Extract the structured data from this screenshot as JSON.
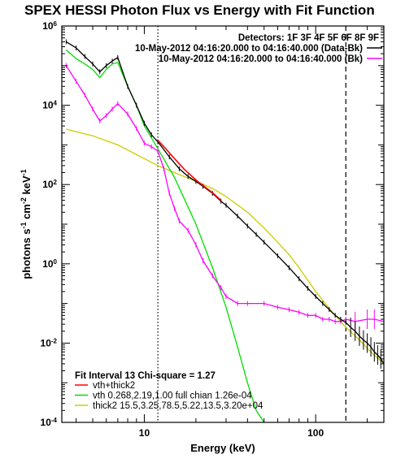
{
  "chart_data": {
    "type": "line",
    "title": "SPEX HESSI Photon Flux vs Energy with Fit Function",
    "xlabel": "Energy (keV)",
    "ylabel_main": "photons s",
    "ylabel_exp1": "-1",
    "ylabel_mid": " cm",
    "ylabel_exp2": "-2",
    "ylabel_end": " keV",
    "ylabel_exp3": "-1",
    "xscale": "log",
    "yscale": "log",
    "xlim": [
      3.3,
      250
    ],
    "ylim": [
      0.0001,
      1000000
    ],
    "x_ticks": [
      {
        "value": 10,
        "label": "10"
      },
      {
        "value": 100,
        "label": "100"
      }
    ],
    "y_ticks": [
      {
        "value": 0.0001,
        "base": "10",
        "exp": "-4"
      },
      {
        "value": 0.01,
        "base": "10",
        "exp": "-2"
      },
      {
        "value": 1,
        "base": "10",
        "exp": "0"
      },
      {
        "value": 100,
        "base": "10",
        "exp": "2"
      },
      {
        "value": 10000,
        "base": "10",
        "exp": "4"
      },
      {
        "value": 1000000,
        "base": "10",
        "exp": "6"
      }
    ],
    "vlines": [
      {
        "x": 12,
        "style": "dotted"
      },
      {
        "x": 150,
        "style": "dashed"
      }
    ],
    "legend_top": {
      "placement": "top-right",
      "header": "Detectors: 1F 3F 4F 5F 6F 8F 9F",
      "entries": [
        {
          "label": "10-May-2012 04:16:20.000 to 04:16:40.000 (Data-Bk)",
          "color": "#000000"
        },
        {
          "label": "10-May-2012 04:16:20.000 to 04:16:40.000 (Bk)",
          "color": "#ff00ff"
        }
      ]
    },
    "legend_bottom": {
      "placement": "bottom-left",
      "header": "Fit Interval 13   Chi-square = 1.27",
      "entries": [
        {
          "label": "vth+thick2",
          "color": "#ff0000"
        },
        {
          "label": "vth 0.268,2.19,1.00  full chian 1.26e-04",
          "color": "#00dd00"
        },
        {
          "label": "thick2 15.5,3.25,78.5,5.22,13.5,3.20e+04",
          "color": "#cccc00"
        }
      ]
    },
    "series": [
      {
        "name": "Data-Bk",
        "color": "#000000",
        "x": [
          3.5,
          4,
          4.5,
          5,
          5.5,
          6,
          6.5,
          7,
          8,
          9,
          10,
          11,
          12,
          14,
          16,
          18,
          20,
          22,
          25,
          28,
          30,
          35,
          40,
          45,
          50,
          60,
          70,
          80,
          90,
          100,
          110,
          120,
          130,
          140,
          150,
          160,
          170,
          180,
          190,
          200,
          210,
          220,
          230,
          240,
          250
        ],
        "y": [
          400000,
          280000,
          170000,
          110000,
          70000,
          100000,
          130000,
          160000,
          30000,
          10000,
          3500,
          1800,
          1200,
          500,
          250,
          160,
          120,
          90,
          60,
          38,
          30,
          16,
          9,
          5.5,
          3.5,
          1.6,
          0.8,
          0.42,
          0.24,
          0.15,
          0.1,
          0.07,
          0.05,
          0.04,
          0.033,
          0.025,
          0.02,
          0.015,
          0.012,
          0.01,
          0.008,
          0.006,
          0.005,
          0.004,
          0.003
        ]
      },
      {
        "name": "Bk",
        "color": "#ff00ff",
        "x": [
          3.5,
          4,
          4.5,
          5,
          5.5,
          6,
          6.5,
          7,
          8,
          9,
          10,
          11,
          12,
          13,
          14,
          15,
          16,
          18,
          20,
          22,
          25,
          28,
          30,
          35,
          40,
          50,
          60,
          70,
          80,
          90,
          100,
          110,
          120,
          130,
          140,
          150,
          170,
          200,
          220,
          250
        ],
        "y": [
          100000,
          40000,
          18000,
          8000,
          4000,
          5500,
          8000,
          11000,
          6000,
          2600,
          1100,
          900,
          700,
          250,
          60,
          25,
          12,
          7,
          3,
          1.2,
          0.5,
          0.25,
          0.15,
          0.1,
          0.1,
          0.1,
          0.08,
          0.07,
          0.06,
          0.05,
          0.05,
          0.04,
          0.04,
          0.035,
          0.035,
          0.04,
          0.035,
          0.04,
          0.04,
          0.035
        ]
      },
      {
        "name": "vth+thick2",
        "color": "#ff0000",
        "x": [
          12,
          13,
          15,
          17,
          20,
          22,
          25,
          28
        ],
        "y": [
          1300,
          900,
          450,
          250,
          130,
          95,
          62,
          40
        ]
      },
      {
        "name": "vth 0.268,2.19,1.00",
        "color": "#00dd00",
        "x": [
          3.5,
          4,
          4.5,
          5,
          5.5,
          6,
          6.5,
          7,
          8,
          9,
          10,
          12,
          15,
          20,
          25,
          30,
          35,
          40,
          45,
          50
        ],
        "y": [
          250000,
          150000,
          110000,
          80000,
          50000,
          80000,
          110000,
          120000,
          30000,
          10000,
          3000,
          800,
          150,
          10,
          0.8,
          0.08,
          0.008,
          0.001,
          0.0002,
          0.0001
        ]
      },
      {
        "name": "thick2 15.5,3.25,78.5,5.22,13.5,3.20e+04",
        "color": "#cccc00",
        "x": [
          3.5,
          5,
          7,
          10,
          12,
          15,
          20,
          25,
          30,
          40,
          50,
          60,
          70,
          80,
          100,
          120,
          150,
          180,
          210,
          250
        ],
        "y": [
          2500,
          1700,
          1000,
          450,
          300,
          200,
          120,
          80,
          50,
          20,
          8,
          3.5,
          1.7,
          0.8,
          0.2,
          0.075,
          0.025,
          0.012,
          0.006,
          0.003
        ]
      }
    ]
  }
}
